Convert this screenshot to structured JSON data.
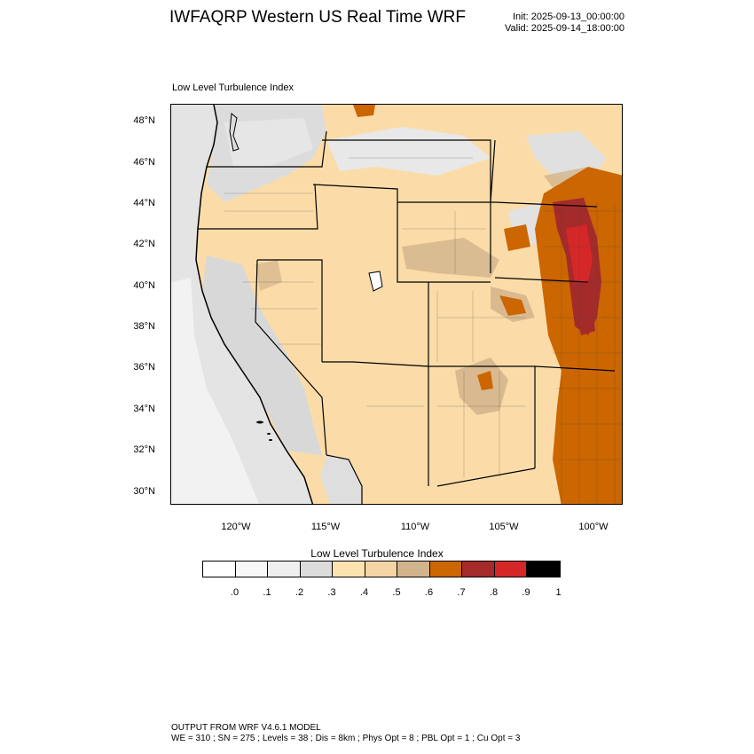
{
  "title": "IWFAQRP Western US Real Time WRF",
  "init": "Init: 2025-09-13_00:00:00",
  "valid": "Valid: 2025-09-14_18:00:00",
  "subtitle": "Low Level Turbulence Index",
  "map": {
    "lat_labels": [
      "48°N",
      "46°N",
      "44°N",
      "42°N",
      "40°N",
      "38°N",
      "36°N",
      "34°N",
      "32°N",
      "30°N"
    ],
    "lon_labels": [
      "120°W",
      "115°W",
      "110°W",
      "105°W",
      "100°W"
    ],
    "colors": {
      "ocean": "#eaeaea",
      "land_base": "#fbdca8",
      "grey_region": "#dcdcdc",
      "light_grey": "#efefef",
      "tan": "#d2b48c",
      "orange": "#cc6600",
      "dark_red": "#a52a2a",
      "red": "#d62728"
    }
  },
  "colorbar": {
    "title": "Low Level Turbulence Index",
    "colors": [
      "#ffffff",
      "#f7f7f7",
      "#efefef",
      "#dcdcdc",
      "#fde3b0",
      "#f5d5a5",
      "#d2b48c",
      "#cc6600",
      "#a52a2a",
      "#d62728",
      "#000000"
    ],
    "labels": [
      ".0",
      ".1",
      ".2",
      ".3",
      ".4",
      ".5",
      ".6",
      ".7",
      ".8",
      ".9",
      "1"
    ]
  },
  "footer": {
    "line1": "OUTPUT FROM WRF V4.6.1 MODEL",
    "line2": "WE = 310 ; SN = 275 ; Levels = 38 ; Dis = 8km ; Phys Opt = 8 ; PBL Opt = 1 ; Cu Opt = 3"
  }
}
